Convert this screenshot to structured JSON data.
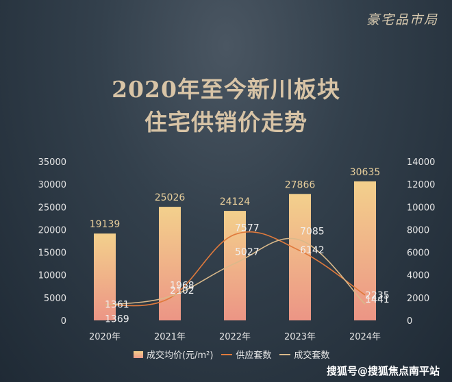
{
  "brand": "豪宅品市局",
  "title_lines": [
    "2020年至今新川板块",
    "住宅供销价走势"
  ],
  "watermark": "搜狐号@搜狐焦点南平站",
  "colors": {
    "bar_top": "#f3d08c",
    "bar_bottom": "#ec9585",
    "supply_line": "#e07a3c",
    "deal_line": "#d9b98a",
    "label_gold": "#e8cf9c",
    "label_white": "#f0f0f0"
  },
  "chart_data": {
    "type": "bar",
    "categories": [
      "2020年",
      "2021年",
      "2022年",
      "2023年",
      "2024年"
    ],
    "y_left": {
      "ticks": [
        0,
        5000,
        10000,
        15000,
        20000,
        25000,
        30000,
        35000
      ],
      "lim": [
        0,
        35000
      ]
    },
    "y_right": {
      "ticks": [
        0,
        2000,
        4000,
        6000,
        8000,
        10000,
        12000,
        14000
      ],
      "lim": [
        0,
        14000
      ]
    },
    "series": [
      {
        "name": "成交均价(元/m²)",
        "kind": "bar",
        "axis": "left",
        "values": [
          19139,
          25026,
          24124,
          27866,
          30635
        ]
      },
      {
        "name": "供应套数",
        "kind": "line",
        "axis": "right",
        "values": [
          1369,
          1968,
          7577,
          6142,
          2235
        ]
      },
      {
        "name": "成交套数",
        "kind": "line",
        "axis": "right",
        "values": [
          1361,
          2102,
          5027,
          7085,
          1441
        ]
      }
    ]
  }
}
